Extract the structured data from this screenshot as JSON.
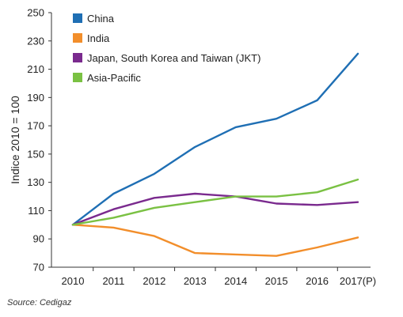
{
  "chart_data": {
    "type": "line",
    "ylabel": "Indice 2010 = 100",
    "xlabel": "",
    "ylim": [
      70,
      250
    ],
    "yticks": [
      70,
      90,
      110,
      130,
      150,
      170,
      190,
      210,
      230,
      250
    ],
    "categories": [
      "2010",
      "2011",
      "2012",
      "2013",
      "2014",
      "2015",
      "2016",
      "2017(P)"
    ],
    "legend_position": "top-left",
    "grid": false,
    "series": [
      {
        "name": "China",
        "color": "#1f6fb4",
        "values": [
          100,
          122,
          136,
          155,
          169,
          175,
          188,
          221
        ]
      },
      {
        "name": "India",
        "color": "#f28e2b",
        "values": [
          100,
          98,
          92,
          80,
          79,
          78,
          84,
          91
        ]
      },
      {
        "name": "Japan, South Korea and Taiwan (JKT)",
        "color": "#7a2a8e",
        "values": [
          100,
          111,
          119,
          122,
          120,
          115,
          114,
          116
        ]
      },
      {
        "name": "Asia-Pacific",
        "color": "#7ac143",
        "values": [
          100,
          105,
          112,
          116,
          120,
          120,
          123,
          132
        ]
      }
    ]
  },
  "source": "Source: Cedigaz"
}
